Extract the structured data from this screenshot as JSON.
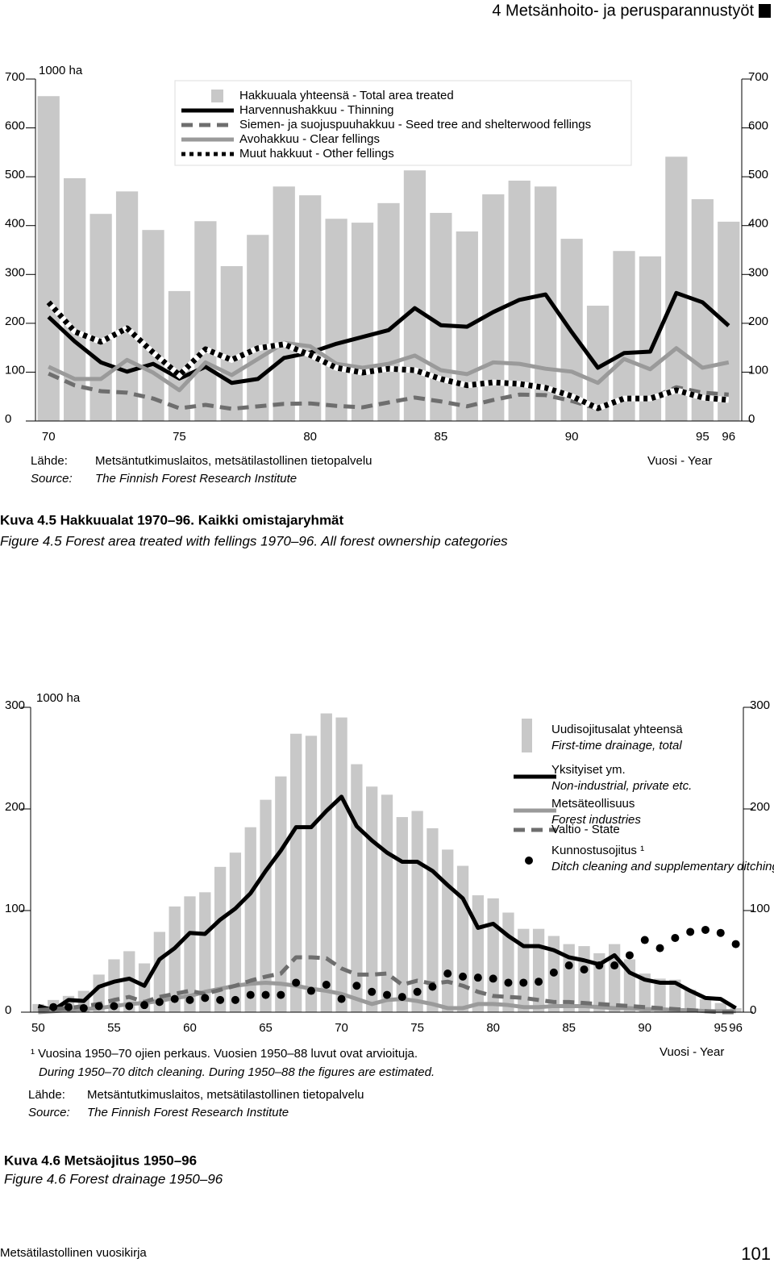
{
  "header": {
    "title": "4 Metsänhoito- ja perusparannustyöt"
  },
  "chart_data": [
    {
      "type": "combo",
      "y_unit": "1000 ha",
      "x_label": "Vuosi - Year",
      "source": {
        "label_fi": "Lähde:",
        "text_fi": "Metsäntutkimuslaitos, metsätilastollinen tietopalvelu",
        "label_en": "Source:",
        "text_en": "The Finnish Forest Research Institute"
      },
      "x": [
        70,
        71,
        72,
        73,
        74,
        75,
        76,
        77,
        78,
        79,
        80,
        81,
        82,
        83,
        84,
        85,
        86,
        87,
        88,
        89,
        90,
        91,
        92,
        93,
        94,
        95,
        96
      ],
      "xlim": [
        69.5,
        96.5
      ],
      "xticks": [
        70,
        75,
        80,
        85,
        90,
        95,
        96
      ],
      "ylim": [
        0,
        700
      ],
      "yticks": [
        0,
        100,
        200,
        300,
        400,
        500,
        600,
        700
      ],
      "series": [
        {
          "name": "Hakkuuala yhteensä - Total area treated",
          "style": "bar",
          "color": "#c8c8c8",
          "values": [
            665,
            497,
            424,
            470,
            391,
            266,
            409,
            317,
            381,
            480,
            462,
            414,
            406,
            446,
            513,
            426,
            388,
            464,
            492,
            480,
            373,
            236,
            348,
            337,
            541,
            454,
            408
          ]
        },
        {
          "name": "Harvennushakkuu - Thinning",
          "style": "line",
          "color": "#000000",
          "values": [
            213,
            163,
            120,
            101,
            117,
            87,
            111,
            78,
            86,
            129,
            140,
            158,
            172,
            186,
            231,
            196,
            193,
            223,
            248,
            259,
            182,
            109,
            139,
            142,
            262,
            243,
            195
          ]
        },
        {
          "name": "Siemen- ja suojuspuuhakkuu - Seed tree and shelterwood fellings",
          "style": "dashed",
          "color": "#6e6e6e",
          "values": [
            97,
            73,
            61,
            58,
            46,
            26,
            33,
            25,
            30,
            35,
            36,
            31,
            28,
            38,
            48,
            40,
            30,
            43,
            54,
            53,
            41,
            25,
            46,
            46,
            69,
            58,
            54
          ]
        },
        {
          "name": "Avohakkuu - Clear fellings",
          "style": "line",
          "color": "#9a9a9a",
          "values": [
            111,
            86,
            86,
            125,
            99,
            63,
            120,
            94,
            127,
            160,
            153,
            117,
            109,
            117,
            134,
            104,
            96,
            120,
            117,
            107,
            101,
            78,
            127,
            106,
            149,
            109,
            120
          ]
        },
        {
          "name": "Muut hakkuut - Other fellings",
          "style": "dotted",
          "color": "#000000",
          "values": [
            243,
            183,
            162,
            190,
            140,
            94,
            147,
            125,
            149,
            157,
            135,
            109,
            99,
            107,
            104,
            86,
            73,
            79,
            76,
            68,
            51,
            26,
            46,
            46,
            63,
            48,
            43
          ]
        }
      ]
    },
    {
      "type": "combo",
      "y_unit": "1000 ha",
      "x_label": "Vuosi - Year",
      "footnote": {
        "fi": "¹ Vuosina 1950–70 ojien perkaus. Vuosien 1950–88 luvut ovat arvioituja.",
        "en": "During 1950–70 ditch cleaning. During 1950–88 the figures are estimated."
      },
      "source": {
        "label_fi": "Lähde:",
        "text_fi": "Metsäntutkimuslaitos, metsätilastollinen tietopalvelu",
        "label_en": "Source:",
        "text_en": "The Finnish Forest Research Institute"
      },
      "x": [
        50,
        51,
        52,
        53,
        54,
        55,
        56,
        57,
        58,
        59,
        60,
        61,
        62,
        63,
        64,
        65,
        66,
        67,
        68,
        69,
        70,
        71,
        72,
        73,
        74,
        75,
        76,
        77,
        78,
        79,
        80,
        81,
        82,
        83,
        84,
        85,
        86,
        87,
        88,
        89,
        90,
        91,
        92,
        93,
        94,
        95,
        96
      ],
      "xlim": [
        49.5,
        96.5
      ],
      "xticks": [
        50,
        55,
        60,
        65,
        70,
        75,
        80,
        85,
        90,
        95,
        96
      ],
      "ylim": [
        0,
        300
      ],
      "yticks": [
        0,
        100,
        200,
        300
      ],
      "series": [
        {
          "name": "Uudisojitusalat yhteensä",
          "name_en": "First-time drainage, total",
          "style": "bar",
          "color": "#c8c8c8",
          "values": [
            8,
            12,
            16,
            21,
            37,
            52,
            60,
            48,
            79,
            104,
            114,
            118,
            143,
            157,
            182,
            209,
            232,
            274,
            272,
            294,
            290,
            244,
            222,
            214,
            192,
            198,
            181,
            160,
            144,
            115,
            112,
            98,
            82,
            82,
            75,
            67,
            65,
            58,
            67,
            52,
            38,
            33,
            32,
            22,
            13,
            9,
            4
          ]
        },
        {
          "name": "Yksityiset ym.",
          "name_en": "Non-industrial, private etc.",
          "style": "line",
          "color": "#000000",
          "values": [
            6,
            2,
            12,
            11,
            25,
            30,
            33,
            26,
            52,
            63,
            78,
            77,
            91,
            102,
            117,
            139,
            159,
            182,
            182,
            198,
            212,
            183,
            169,
            157,
            148,
            148,
            139,
            125,
            112,
            83,
            87,
            75,
            65,
            65,
            61,
            54,
            51,
            47,
            56,
            39,
            32,
            29,
            29,
            21,
            14,
            13,
            4
          ]
        },
        {
          "name": "Metsäteollisuus",
          "name_en": "Forest industries",
          "style": "line",
          "color": "#9a9a9a",
          "values": [
            0,
            1,
            2,
            3,
            4,
            6,
            8,
            9,
            11,
            14,
            16,
            20,
            23,
            26,
            28,
            29,
            28,
            26,
            23,
            21,
            18,
            13,
            8,
            12,
            13,
            11,
            8,
            4,
            4,
            8,
            8,
            7,
            5,
            5,
            6,
            6,
            6,
            5,
            4,
            4,
            3,
            3,
            2,
            2,
            1,
            1,
            1
          ]
        },
        {
          "name": "Valtio - State",
          "style": "dashed",
          "color": "#6e6e6e",
          "values": [
            2,
            3,
            4,
            6,
            8,
            12,
            15,
            10,
            15,
            18,
            21,
            18,
            22,
            26,
            31,
            35,
            38,
            54,
            54,
            53,
            43,
            37,
            37,
            38,
            27,
            31,
            28,
            30,
            26,
            20,
            16,
            15,
            14,
            12,
            10,
            10,
            9,
            8,
            7,
            6,
            5,
            4,
            3,
            2,
            1,
            0,
            0
          ]
        },
        {
          "name": "Kunnostusojitus ¹",
          "name_en": "Ditch cleaning and supplementary ditching",
          "style": "markers",
          "color": "#000000",
          "values": [
            null,
            5,
            5,
            4,
            6,
            6,
            6,
            7,
            10,
            13,
            12,
            14,
            12,
            12,
            17,
            17,
            17,
            29,
            21,
            27,
            13,
            26,
            20,
            17,
            15,
            20,
            25,
            38,
            35,
            34,
            33,
            29,
            29,
            30,
            39,
            46,
            42,
            46,
            46,
            56,
            71,
            63,
            73,
            79,
            81,
            78,
            67
          ]
        }
      ]
    }
  ],
  "figures": [
    {
      "caption_fi": "Kuva 4.5 Hakkuualat 1970–96. Kaikki omistajaryhmät",
      "caption_en": "Figure 4.5 Forest area treated with fellings 1970–96. All forest ownership categories"
    },
    {
      "caption_fi": "Kuva 4.6 Metsäojitus 1950–96",
      "caption_en": "Figure 4.6 Forest drainage 1950–96"
    }
  ],
  "footer": {
    "publication": "Metsätilastollinen vuosikirja",
    "page": 101
  }
}
